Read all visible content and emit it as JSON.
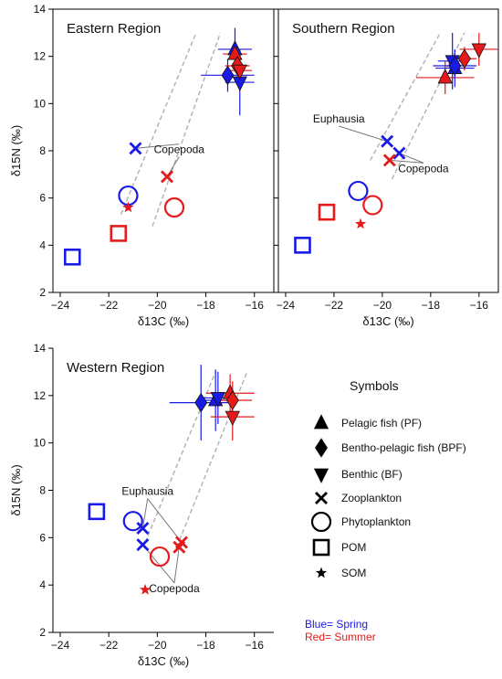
{
  "colors": {
    "spring": "#1a1ae6",
    "summer": "#e61a1a",
    "band": "#b0b0b0"
  },
  "chart_data": [
    {
      "type": "scatter",
      "title": "Eastern Region",
      "xlabel": "δ13C (‰)",
      "ylabel": "δ15N (‰)",
      "xlim": [
        -24.3,
        -15.2
      ],
      "ylim": [
        2,
        14
      ],
      "xticks": [
        -24,
        -22,
        -20,
        -18,
        -16
      ],
      "yticks": [
        2,
        4,
        6,
        8,
        10,
        12,
        14
      ],
      "band_lines": [
        [
          [
            -21.5,
            5.3
          ],
          [
            -18.4,
            13.0
          ]
        ],
        [
          [
            -20.2,
            4.8
          ],
          [
            -17.4,
            13.0
          ]
        ]
      ],
      "annotations": [
        {
          "text": "Copepoda",
          "at": [
            -19.1,
            7.9
          ],
          "targets": [
            [
              -20.9,
              8.1
            ],
            [
              -19.6,
              6.9
            ]
          ]
        }
      ],
      "points": [
        {
          "group": "POM",
          "season": "spring",
          "marker": "square",
          "x": -23.5,
          "y": 3.5
        },
        {
          "group": "POM",
          "season": "summer",
          "marker": "square",
          "x": -21.6,
          "y": 4.5
        },
        {
          "group": "Phytoplankton",
          "season": "spring",
          "marker": "circle",
          "x": -21.2,
          "y": 6.1
        },
        {
          "group": "Phytoplankton",
          "season": "summer",
          "marker": "circle",
          "x": -19.3,
          "y": 5.6
        },
        {
          "group": "SOM",
          "season": "summer",
          "marker": "star",
          "x": -21.2,
          "y": 5.6
        },
        {
          "group": "Zooplankton",
          "season": "spring",
          "marker": "x",
          "x": -20.9,
          "y": 8.1
        },
        {
          "group": "Zooplankton",
          "season": "summer",
          "marker": "x",
          "x": -19.6,
          "y": 6.9
        },
        {
          "group": "Bentho-pelagic fish",
          "season": "spring",
          "marker": "diamond",
          "x": -17.1,
          "y": 11.2,
          "xerr": 1.1,
          "yerr": 0.7
        },
        {
          "group": "Pelagic fish",
          "season": "spring",
          "marker": "triangle",
          "x": -16.8,
          "y": 12.3,
          "xerr": 0.7,
          "yerr": 0.9
        },
        {
          "group": "Benthic",
          "season": "spring",
          "marker": "triangle-down",
          "x": -16.6,
          "y": 10.9,
          "xerr": 0.6,
          "yerr": 1.4
        },
        {
          "group": "Pelagic fish",
          "season": "summer",
          "marker": "triangle",
          "x": -16.8,
          "y": 12.1,
          "xerr": 0.5,
          "yerr": 0.6
        },
        {
          "group": "Bentho-pelagic fish",
          "season": "summer",
          "marker": "diamond",
          "x": -16.7,
          "y": 11.6,
          "xerr": 0.5,
          "yerr": 0.8
        },
        {
          "group": "Benthic",
          "season": "summer",
          "marker": "triangle-down",
          "x": -16.6,
          "y": 11.4,
          "xerr": 0.5,
          "yerr": 0.9
        }
      ]
    },
    {
      "type": "scatter",
      "title": "Southern Region",
      "xlabel": "δ13C (‰)",
      "ylabel": "",
      "xlim": [
        -24.3,
        -15.2
      ],
      "ylim": [
        2,
        14
      ],
      "xticks": [
        -24,
        -22,
        -20,
        -18,
        -16
      ],
      "yticks": [
        2,
        4,
        6,
        8,
        10,
        12,
        14
      ],
      "band_lines": [
        [
          [
            -20.5,
            7.6
          ],
          [
            -17.6,
            13.0
          ]
        ],
        [
          [
            -19.6,
            6.8
          ],
          [
            -16.6,
            13.0
          ]
        ]
      ],
      "annotations": [
        {
          "text": "Euphausia",
          "at": [
            -21.8,
            9.2
          ],
          "targets": [
            [
              -19.8,
              8.4
            ]
          ]
        },
        {
          "text": "Copepoda",
          "at": [
            -18.3,
            7.1
          ],
          "targets": [
            [
              -19.3,
              7.9
            ],
            [
              -19.7,
              7.6
            ]
          ]
        }
      ],
      "points": [
        {
          "group": "POM",
          "season": "spring",
          "marker": "square",
          "x": -23.3,
          "y": 4.0
        },
        {
          "group": "POM",
          "season": "summer",
          "marker": "square",
          "x": -22.3,
          "y": 5.4
        },
        {
          "group": "Phytoplankton",
          "season": "spring",
          "marker": "circle",
          "x": -21.0,
          "y": 6.3
        },
        {
          "group": "Phytoplankton",
          "season": "summer",
          "marker": "circle",
          "x": -20.4,
          "y": 5.7
        },
        {
          "group": "SOM",
          "season": "summer",
          "marker": "star",
          "x": -20.9,
          "y": 4.9
        },
        {
          "group": "Euphausia",
          "season": "spring",
          "marker": "x",
          "x": -19.8,
          "y": 8.4
        },
        {
          "group": "Copepoda",
          "season": "spring",
          "marker": "x",
          "x": -19.3,
          "y": 7.9
        },
        {
          "group": "Copepoda",
          "season": "summer",
          "marker": "x",
          "x": -19.7,
          "y": 7.6
        },
        {
          "group": "Pelagic fish",
          "season": "summer",
          "marker": "triangle",
          "x": -17.4,
          "y": 11.1,
          "xerr": 1.2,
          "yerr": 0.7
        },
        {
          "group": "Benthic",
          "season": "spring",
          "marker": "triangle-down",
          "x": -17.1,
          "y": 11.8,
          "xerr": 0.6,
          "yerr": 1.2
        },
        {
          "group": "Pelagic fish",
          "season": "spring",
          "marker": "triangle",
          "x": -17.0,
          "y": 11.5,
          "xerr": 0.8,
          "yerr": 0.8
        },
        {
          "group": "Bentho-pelagic fish",
          "season": "spring",
          "marker": "diamond",
          "x": -17.0,
          "y": 11.6,
          "xerr": 0.9,
          "yerr": 0.5
        },
        {
          "group": "Bentho-pelagic fish",
          "season": "summer",
          "marker": "diamond",
          "x": -16.6,
          "y": 11.9,
          "xerr": 0.5,
          "yerr": 0.5
        },
        {
          "group": "Benthic",
          "season": "summer",
          "marker": "triangle-down",
          "x": -16.0,
          "y": 12.3,
          "xerr": 0.8,
          "yerr": 0.7
        }
      ]
    },
    {
      "type": "scatter",
      "title": "Western Region",
      "xlabel": "δ13C (‰)",
      "ylabel": "δ15N (‰)",
      "xlim": [
        -24.3,
        -15.2
      ],
      "ylim": [
        2,
        14
      ],
      "xticks": [
        -24,
        -22,
        -20,
        -18,
        -16
      ],
      "yticks": [
        2,
        4,
        6,
        8,
        10,
        12,
        14
      ],
      "band_lines": [
        [
          [
            -20.5,
            5.8
          ],
          [
            -17.6,
            13.0
          ]
        ],
        [
          [
            -19.2,
            5.6
          ],
          [
            -16.3,
            13.0
          ]
        ]
      ],
      "annotations": [
        {
          "text": "Euphausia",
          "at": [
            -20.4,
            7.8
          ],
          "targets": [
            [
              -20.6,
              6.4
            ],
            [
              -19.0,
              5.8
            ]
          ]
        },
        {
          "text": "Copepoda",
          "at": [
            -19.3,
            3.7
          ],
          "targets": [
            [
              -20.6,
              5.7
            ],
            [
              -19.1,
              5.6
            ]
          ]
        }
      ],
      "points": [
        {
          "group": "POM",
          "season": "spring",
          "marker": "square",
          "x": -22.5,
          "y": 7.1
        },
        {
          "group": "Phytoplankton",
          "season": "spring",
          "marker": "circle",
          "x": -21.0,
          "y": 6.7
        },
        {
          "group": "Phytoplankton",
          "season": "summer",
          "marker": "circle",
          "x": -19.9,
          "y": 5.2
        },
        {
          "group": "SOM",
          "season": "summer",
          "marker": "star",
          "x": -20.5,
          "y": 3.8
        },
        {
          "group": "Euphausia",
          "season": "spring",
          "marker": "x",
          "x": -20.6,
          "y": 6.4
        },
        {
          "group": "Copepoda",
          "season": "spring",
          "marker": "x",
          "x": -20.6,
          "y": 5.7
        },
        {
          "group": "Euphausia",
          "season": "summer",
          "marker": "x",
          "x": -19.0,
          "y": 5.8
        },
        {
          "group": "Copepoda",
          "season": "summer",
          "marker": "x",
          "x": -19.1,
          "y": 5.6
        },
        {
          "group": "Bentho-pelagic fish",
          "season": "spring",
          "marker": "diamond",
          "x": -18.2,
          "y": 11.7,
          "xerr": 1.3,
          "yerr": 1.6
        },
        {
          "group": "Pelagic fish",
          "season": "spring",
          "marker": "triangle",
          "x": -17.6,
          "y": 11.8,
          "xerr": 0.6,
          "yerr": 1.3
        },
        {
          "group": "Benthic",
          "season": "spring",
          "marker": "triangle-down",
          "x": -17.5,
          "y": 11.9,
          "xerr": 0.6,
          "yerr": 1.1
        },
        {
          "group": "Pelagic fish",
          "season": "summer",
          "marker": "triangle",
          "x": -17.0,
          "y": 12.1,
          "xerr": 1.0,
          "yerr": 0.8
        },
        {
          "group": "Bentho-pelagic fish",
          "season": "summer",
          "marker": "diamond",
          "x": -16.9,
          "y": 11.8,
          "xerr": 0.8,
          "yerr": 0.8
        },
        {
          "group": "Benthic",
          "season": "summer",
          "marker": "triangle-down",
          "x": -16.9,
          "y": 11.1,
          "xerr": 0.9,
          "yerr": 1.0
        }
      ]
    }
  ],
  "legend": {
    "title": "Symbols",
    "items": [
      {
        "marker": "triangle",
        "label": "Pelagic fish (PF)"
      },
      {
        "marker": "diamond",
        "label": "Bentho-pelagic fish (BPF)"
      },
      {
        "marker": "triangle-down",
        "label": "Benthic (BF)"
      },
      {
        "marker": "x",
        "label": "Zooplankton"
      },
      {
        "marker": "circle",
        "label": "Phytoplankton"
      },
      {
        "marker": "square",
        "label": "POM"
      },
      {
        "marker": "star",
        "label": "SOM"
      }
    ],
    "season_keys": [
      {
        "season": "spring",
        "label": "Blue= Spring"
      },
      {
        "season": "summer",
        "label": "Red= Summer"
      }
    ]
  }
}
